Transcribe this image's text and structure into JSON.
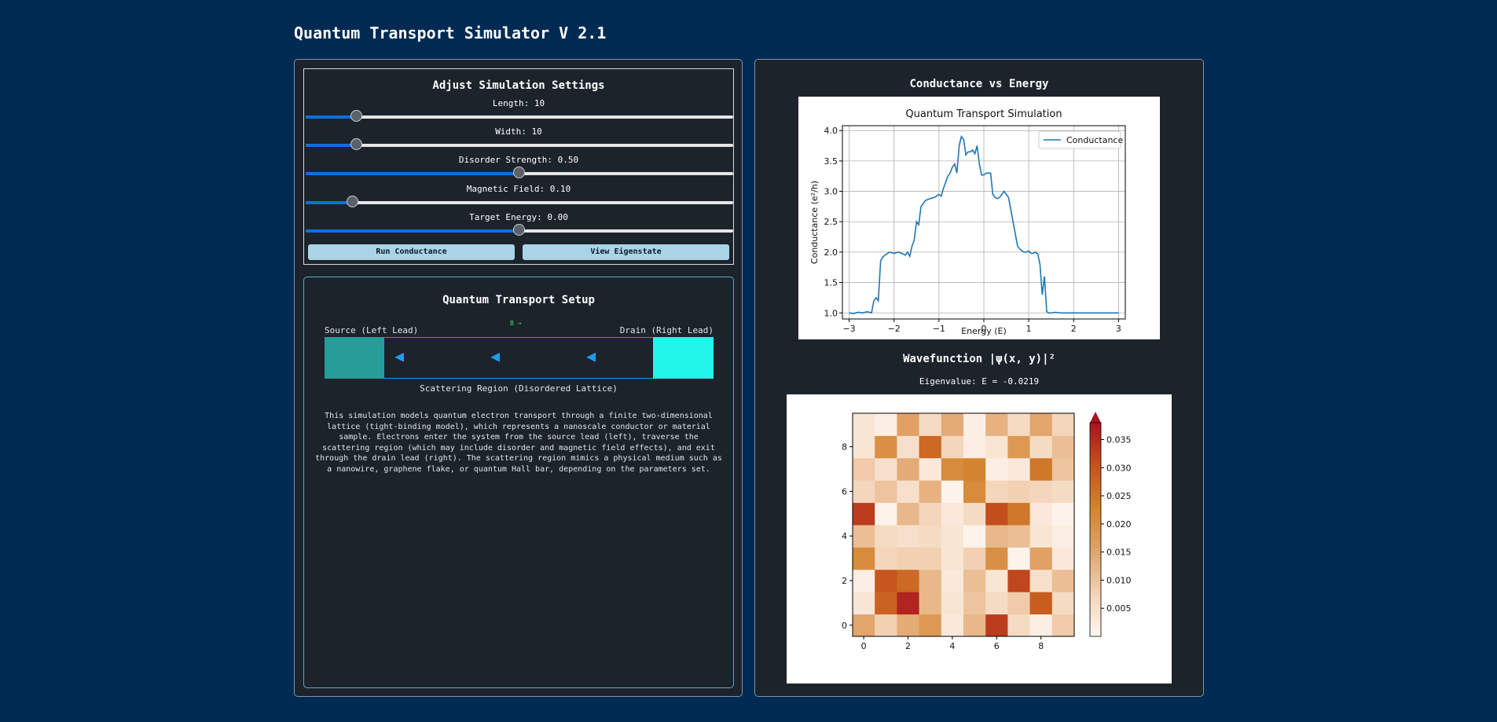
{
  "app": {
    "title": "Quantum Transport Simulator V 2.1"
  },
  "settings": {
    "title": "Adjust Simulation Settings",
    "sliders": [
      {
        "label": "Length: 10",
        "fraction": 0.12
      },
      {
        "label": "Width: 10",
        "fraction": 0.12
      },
      {
        "label": "Disorder Strength: 0.50",
        "fraction": 0.5
      },
      {
        "label": "Magnetic Field: 0.10",
        "fraction": 0.11
      },
      {
        "label": "Target Energy: 0.00",
        "fraction": 0.5
      }
    ],
    "buttons": {
      "run": "Run Conductance",
      "view": "View Eigenstate"
    }
  },
  "setup": {
    "title": "Quantum Transport Setup",
    "source_label": "Source (Left Lead)",
    "drain_label": "Drain (Right Lead)",
    "b_indicator": "B →",
    "arrow_glyph": "◀",
    "scattering_label": "Scattering Region (Disordered Lattice)",
    "description": "This simulation models quantum electron transport through a finite two-dimensional lattice (tight-binding model), which represents a nanoscale conductor or material sample. Electrons enter the system from the source lead (left), traverse the scattering region (which may include disorder and magnetic field effects), and exit through the drain lead (right). The scattering region mimics a physical medium such as a nanowire, graphene flake, or quantum Hall bar, depending on the parameters set.",
    "colors": {
      "source_lead": "#279d9a",
      "drain_lead": "#22f5e9",
      "region_border": "#1e96d8",
      "arrow": "#1e9bf0"
    }
  },
  "conductance_panel": {
    "header": "Conductance vs Energy"
  },
  "wavefunction_panel": {
    "header": "Wavefunction |ψ(x, y)|²",
    "eigenvalue": "Eigenvalue: E = -0.0219"
  },
  "chart_data": [
    {
      "type": "line",
      "title": "Quantum Transport Simulation",
      "xlabel": "Energy (E)",
      "ylabel": "Conductance (e²/h)",
      "xlim": [
        -3.15,
        3.15
      ],
      "ylim": [
        0.9,
        4.08
      ],
      "xticks": [
        -3,
        -2,
        -1,
        0,
        1,
        2,
        3
      ],
      "yticks": [
        1.0,
        1.5,
        2.0,
        2.5,
        3.0,
        3.5,
        4.0
      ],
      "grid": true,
      "legend": "top-right",
      "series": [
        {
          "name": "Conductance",
          "color": "#1f77b4",
          "x": [
            -3.0,
            -2.9,
            -2.8,
            -2.7,
            -2.6,
            -2.5,
            -2.45,
            -2.4,
            -2.35,
            -2.3,
            -2.25,
            -2.2,
            -2.1,
            -2.0,
            -1.9,
            -1.8,
            -1.75,
            -1.7,
            -1.65,
            -1.6,
            -1.55,
            -1.5,
            -1.45,
            -1.4,
            -1.35,
            -1.3,
            -1.2,
            -1.1,
            -1.0,
            -0.95,
            -0.9,
            -0.85,
            -0.8,
            -0.75,
            -0.7,
            -0.65,
            -0.6,
            -0.55,
            -0.5,
            -0.45,
            -0.4,
            -0.35,
            -0.3,
            -0.25,
            -0.2,
            -0.15,
            -0.1,
            -0.05,
            0.0,
            0.05,
            0.1,
            0.15,
            0.2,
            0.25,
            0.3,
            0.35,
            0.4,
            0.45,
            0.5,
            0.55,
            0.6,
            0.65,
            0.7,
            0.75,
            0.8,
            0.85,
            0.9,
            0.95,
            1.0,
            1.05,
            1.1,
            1.15,
            1.2,
            1.25,
            1.3,
            1.35,
            1.4,
            1.45,
            1.5,
            1.6,
            1.7,
            1.8,
            1.9,
            2.0,
            2.05,
            2.1,
            2.15,
            2.2,
            2.25,
            2.3,
            2.35,
            2.4,
            2.45,
            2.5,
            2.6,
            2.7,
            2.8,
            2.9,
            3.0
          ],
          "y": [
            1.0,
            0.99,
            1.01,
            1.0,
            1.02,
            1.0,
            1.2,
            1.25,
            1.2,
            1.85,
            1.92,
            1.95,
            2.0,
            1.98,
            2.0,
            1.97,
            1.95,
            2.0,
            1.93,
            2.1,
            2.2,
            2.5,
            2.45,
            2.75,
            2.8,
            2.85,
            2.88,
            2.9,
            2.95,
            2.92,
            3.05,
            3.15,
            3.25,
            3.3,
            3.4,
            3.45,
            3.3,
            3.75,
            3.9,
            3.85,
            3.6,
            3.65,
            3.65,
            3.68,
            3.62,
            3.75,
            3.45,
            3.27,
            3.27,
            3.3,
            3.3,
            3.3,
            2.95,
            2.9,
            2.88,
            2.9,
            2.95,
            3.0,
            2.95,
            2.9,
            2.7,
            2.5,
            2.3,
            2.1,
            2.05,
            2.02,
            2.0,
            2.0,
            2.02,
            1.98,
            1.98,
            2.0,
            1.97,
            1.8,
            1.3,
            1.6,
            1.02,
            1.0,
            1.0,
            1.01,
            1.0,
            1.0,
            1.0,
            1.0,
            1.0,
            1.0,
            1.0,
            1.0,
            1.0,
            1.0,
            1.0,
            1.0,
            1.0,
            1.0,
            1.0,
            1.0,
            1.0,
            1.0,
            1.0
          ]
        }
      ]
    },
    {
      "type": "heatmap",
      "xticks": [
        0,
        2,
        4,
        6,
        8
      ],
      "yticks": [
        0,
        2,
        4,
        6,
        8
      ],
      "colorbar_ticks": [
        0.005,
        0.01,
        0.015,
        0.02,
        0.025,
        0.03,
        0.035
      ],
      "vmin": 0.0,
      "vmax": 0.038,
      "colormap": [
        "#fff8f2",
        "#f3d3b7",
        "#e2a46a",
        "#d4852e",
        "#c5531c",
        "#a81420"
      ],
      "values": [
        [
          0.015,
          0.008,
          0.014,
          0.018,
          0.003,
          0.012,
          0.033,
          0.006,
          0.002,
          0.009
        ],
        [
          0.004,
          0.028,
          0.036,
          0.012,
          0.004,
          0.01,
          0.006,
          0.009,
          0.029,
          0.006
        ],
        [
          0.002,
          0.03,
          0.027,
          0.012,
          0.003,
          0.011,
          0.004,
          0.032,
          0.005,
          0.011
        ],
        [
          0.021,
          0.007,
          0.008,
          0.008,
          0.004,
          0.008,
          0.02,
          0.001,
          0.016,
          0.003
        ],
        [
          0.011,
          0.006,
          0.005,
          0.006,
          0.004,
          0.001,
          0.012,
          0.011,
          0.004,
          0.002
        ],
        [
          0.033,
          0.001,
          0.012,
          0.007,
          0.003,
          0.006,
          0.031,
          0.025,
          0.003,
          0.001
        ],
        [
          0.007,
          0.01,
          0.005,
          0.013,
          0.001,
          0.021,
          0.007,
          0.008,
          0.007,
          0.006
        ],
        [
          0.009,
          0.005,
          0.014,
          0.003,
          0.021,
          0.023,
          0.002,
          0.003,
          0.025,
          0.01
        ],
        [
          0.004,
          0.02,
          0.005,
          0.027,
          0.007,
          0.002,
          0.004,
          0.018,
          0.006,
          0.011
        ],
        [
          0.004,
          0.002,
          0.016,
          0.006,
          0.014,
          0.002,
          0.013,
          0.006,
          0.015,
          0.007
        ]
      ]
    }
  ]
}
